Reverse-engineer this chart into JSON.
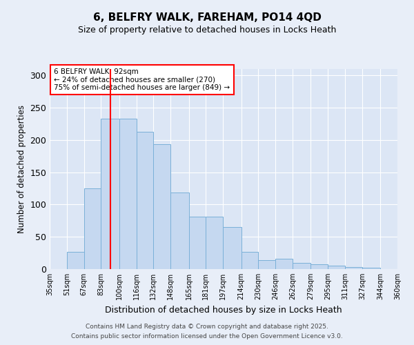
{
  "title1": "6, BELFRY WALK, FAREHAM, PO14 4QD",
  "title2": "Size of property relative to detached houses in Locks Heath",
  "xlabel": "Distribution of detached houses by size in Locks Heath",
  "ylabel": "Number of detached properties",
  "bin_labels": [
    "35sqm",
    "51sqm",
    "67sqm",
    "83sqm",
    "100sqm",
    "116sqm",
    "132sqm",
    "148sqm",
    "165sqm",
    "181sqm",
    "197sqm",
    "214sqm",
    "230sqm",
    "246sqm",
    "262sqm",
    "279sqm",
    "295sqm",
    "311sqm",
    "327sqm",
    "344sqm",
    "360sqm"
  ],
  "bin_edges": [
    35,
    51,
    67,
    83,
    100,
    116,
    132,
    148,
    165,
    181,
    197,
    214,
    230,
    246,
    262,
    279,
    295,
    311,
    327,
    344,
    360
  ],
  "values": [
    0,
    27,
    125,
    233,
    233,
    213,
    193,
    119,
    81,
    81,
    65,
    27,
    14,
    16,
    10,
    7,
    5,
    3,
    2,
    0,
    1
  ],
  "bar_color": "#c5d8f0",
  "bar_edge_color": "#7ab0d8",
  "red_line_x": 92,
  "annotation_text": "6 BELFRY WALK: 92sqm\n← 24% of detached houses are smaller (270)\n75% of semi-detached houses are larger (849) →",
  "annotation_box_color": "white",
  "annotation_box_edge": "red",
  "footer1": "Contains HM Land Registry data © Crown copyright and database right 2025.",
  "footer2": "Contains public sector information licensed under the Open Government Licence v3.0.",
  "ylim": [
    0,
    310
  ],
  "bg_color": "#e8eef8",
  "plot_bg_color": "#dce6f5",
  "yticks": [
    0,
    50,
    100,
    150,
    200,
    250,
    300
  ]
}
